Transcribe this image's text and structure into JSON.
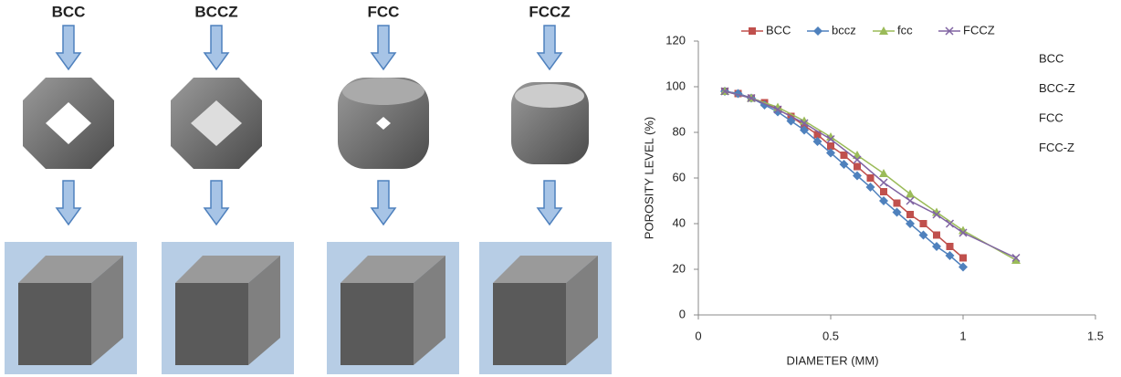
{
  "labels": [
    "BCC",
    "BCCZ",
    "FCC",
    "FCCZ"
  ],
  "chart_data": {
    "type": "line",
    "xlabel": "DIAMETER (MM)",
    "ylabel": "POROSITY LEVEL (%)",
    "xlim": [
      0,
      1.5
    ],
    "xticks": [
      0,
      0.5,
      1,
      1.5
    ],
    "ylim": [
      0,
      120
    ],
    "yticks": [
      0,
      20,
      40,
      60,
      80,
      100,
      120
    ],
    "grid": false,
    "legend": "top",
    "annotations": [
      "BCC",
      "BCC-Z",
      "FCC",
      "FCC-Z"
    ],
    "series": [
      {
        "name": "BCC",
        "color": "#c0504d",
        "marker": "square",
        "x": [
          0.1,
          0.15,
          0.2,
          0.25,
          0.3,
          0.35,
          0.4,
          0.45,
          0.5,
          0.55,
          0.6,
          0.65,
          0.7,
          0.75,
          0.8,
          0.85,
          0.9,
          0.95,
          1.0
        ],
        "values": [
          98,
          97,
          95,
          93,
          90,
          87,
          83,
          79,
          74,
          70,
          65,
          60,
          54,
          49,
          44,
          40,
          35,
          30,
          25
        ]
      },
      {
        "name": "bccz",
        "color": "#4f81bd",
        "marker": "diamond",
        "x": [
          0.1,
          0.15,
          0.2,
          0.25,
          0.3,
          0.35,
          0.4,
          0.45,
          0.5,
          0.55,
          0.6,
          0.65,
          0.7,
          0.75,
          0.8,
          0.85,
          0.9,
          0.95,
          1.0
        ],
        "values": [
          98,
          97,
          95,
          92,
          89,
          85,
          81,
          76,
          71,
          66,
          61,
          56,
          50,
          45,
          40,
          35,
          30,
          26,
          21
        ]
      },
      {
        "name": "fcc",
        "color": "#9bbb59",
        "marker": "triangle",
        "x": [
          0.1,
          0.2,
          0.3,
          0.4,
          0.5,
          0.6,
          0.7,
          0.8,
          0.9,
          1.0,
          1.2
        ],
        "values": [
          98,
          95,
          91,
          85,
          78,
          70,
          62,
          53,
          45,
          37,
          24
        ]
      },
      {
        "name": "FCCZ",
        "color": "#8064a2",
        "marker": "x",
        "x": [
          0.1,
          0.2,
          0.3,
          0.4,
          0.5,
          0.6,
          0.7,
          0.8,
          0.9,
          0.95,
          1.0,
          1.2
        ],
        "values": [
          98,
          95,
          90,
          84,
          77,
          68,
          58,
          50,
          44,
          40,
          36,
          25
        ]
      }
    ]
  }
}
